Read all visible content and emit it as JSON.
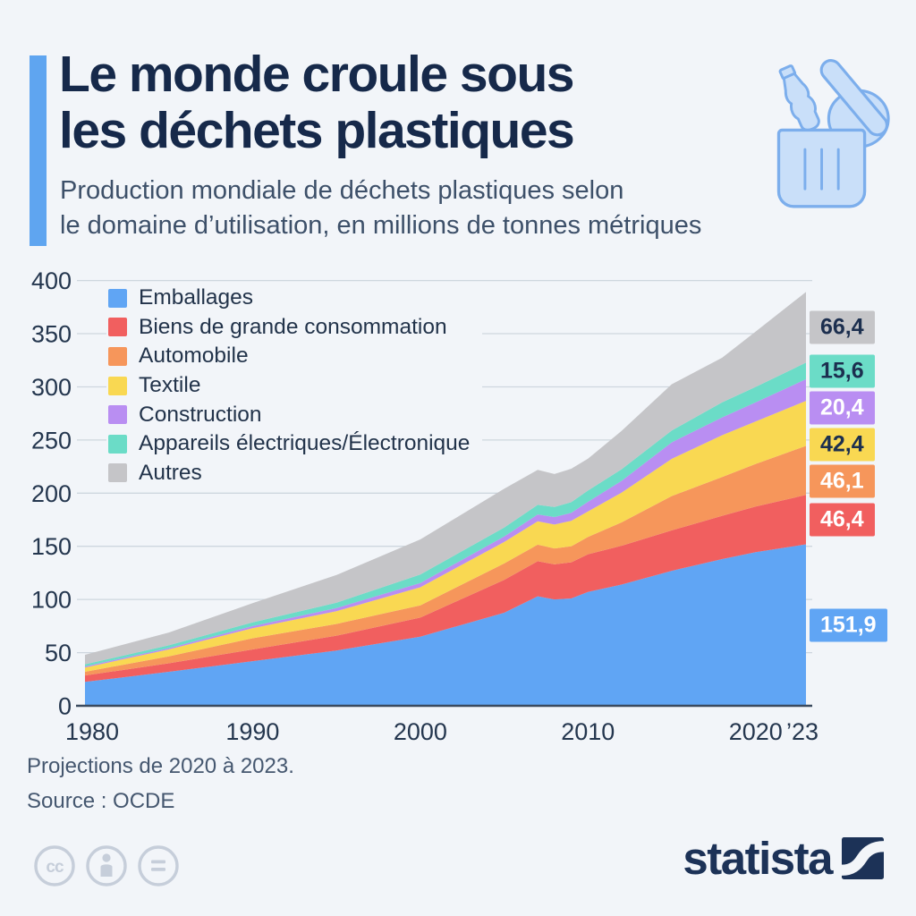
{
  "header": {
    "title_line1": "Le monde croule sous",
    "title_line2": "les déchets plastiques",
    "subtitle_line1": "Production mondiale de déchets plastiques selon",
    "subtitle_line2": "le domaine d’utilisation, en millions de tonnes métriques",
    "decoration_icon": "trash-bin-with-plastic-icon"
  },
  "chart_data": {
    "type": "area",
    "stacked": true,
    "title": "Le monde croule sous les déchets plastiques",
    "xlabel": "",
    "ylabel": "millions de tonnes métriques",
    "ylim": [
      0,
      400
    ],
    "grid": true,
    "legend_position": "top-left-inside",
    "x": [
      1980,
      1985,
      1990,
      1995,
      2000,
      2005,
      2007,
      2008,
      2009,
      2010,
      2012,
      2015,
      2018,
      2020,
      2023
    ],
    "series": [
      {
        "name": "Emballages",
        "color": "#60A5F4",
        "end_label": "151,9",
        "label_text_color": "#FFFFFF",
        "values": [
          22.5,
          32,
          42,
          52,
          65,
          87.5,
          103,
          100,
          101,
          107,
          114,
          127,
          138,
          144.5,
          151.9
        ]
      },
      {
        "name": "Biens de grande consommation",
        "color": "#F15F5F",
        "end_label": "46,4",
        "label_text_color": "#FFFFFF",
        "values": [
          6,
          8,
          11,
          14,
          18,
          31,
          33,
          33,
          34,
          35.5,
          36.5,
          38,
          40.7,
          43,
          46.4
        ]
      },
      {
        "name": "Automobile",
        "color": "#F6965B",
        "end_label": "46,1",
        "label_text_color": "#FFFFFF",
        "values": [
          3.5,
          6.5,
          10.5,
          11,
          11.5,
          15.4,
          15.5,
          15,
          15,
          16.3,
          22,
          32.3,
          36.5,
          40,
          46.1
        ]
      },
      {
        "name": "Textile",
        "color": "#F9D852",
        "end_label": "42,4",
        "label_text_color": "#1C2F4F",
        "values": [
          4,
          6.5,
          9.5,
          12,
          17,
          20.2,
          22,
          22.5,
          24,
          24,
          28,
          35,
          39.3,
          40,
          42.4
        ]
      },
      {
        "name": "Construction",
        "color": "#B98EF2",
        "end_label": "20,4",
        "label_text_color": "#FFFFFF",
        "values": [
          1,
          1.3,
          2,
          3,
          4,
          5.1,
          6.5,
          7,
          7.5,
          9,
          11,
          15.5,
          16.8,
          18,
          20.4
        ]
      },
      {
        "name": "Appareils électriques/Électronique",
        "color": "#6BDCC7",
        "end_label": "15,6",
        "label_text_color": "#1C2F4F",
        "values": [
          2,
          2.6,
          3.5,
          5,
          8,
          8.4,
          9,
          9.5,
          10,
          10.6,
          11,
          11.2,
          14.1,
          14.5,
          15.6
        ]
      },
      {
        "name": "Autres",
        "color": "#C5C5C8",
        "end_label": "66,4",
        "label_text_color": "#1C2F4F",
        "values": [
          9,
          12,
          18,
          26,
          33,
          36.5,
          33,
          31,
          31.5,
          30,
          36,
          43.5,
          42,
          52,
          66.4
        ]
      }
    ],
    "y_ticks": [
      0,
      50,
      100,
      150,
      200,
      250,
      300,
      350,
      400
    ],
    "x_ticks": [
      {
        "year": 1980,
        "label": "1980"
      },
      {
        "year": 1990,
        "label": "1990"
      },
      {
        "year": 2000,
        "label": "2000"
      },
      {
        "year": 2010,
        "label": "2010"
      },
      {
        "year": 2020,
        "label": "2020"
      },
      {
        "year": 2023,
        "label": "’23"
      }
    ]
  },
  "footnotes": [
    "Projections de 2020 à 2023.",
    "Source : OCDE"
  ],
  "footer": {
    "brand": "statista",
    "brand_icon": "statista-logo-icon",
    "license_icons": [
      "cc-icon",
      "attribution-icon",
      "equals-icon"
    ]
  },
  "colors": {
    "background": "#F2F5F9",
    "accent_bar": "#5FA5F0",
    "title_navy": "#16294A",
    "subtitle_slate": "#3D5069",
    "axis_text": "#24364E",
    "gridline": "#CED6DE",
    "axis_line": "#3A4A5E",
    "icon_fill": "#C9DFF9",
    "icon_stroke": "#7CAEEC",
    "license_grey": "#C6CEDA",
    "brand_navy": "#1C3257"
  }
}
